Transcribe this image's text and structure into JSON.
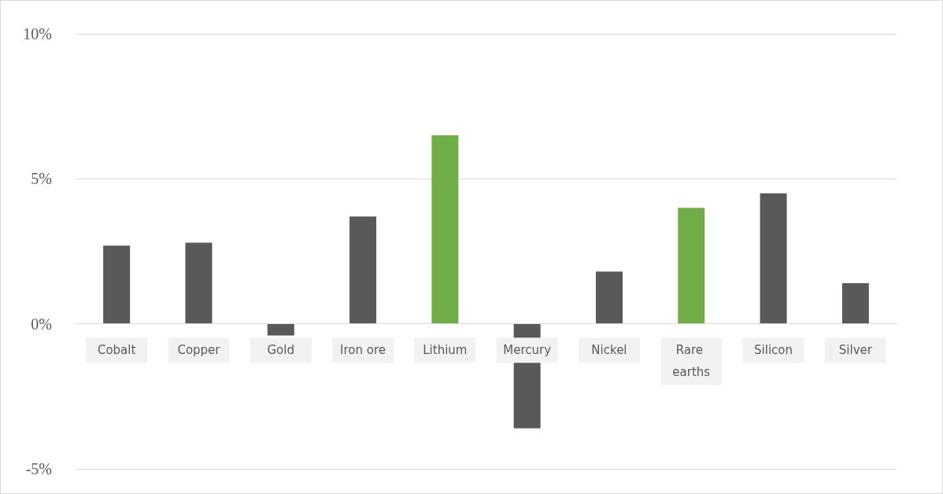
{
  "chart_data": {
    "type": "bar",
    "categories": [
      "Cobalt",
      "Copper",
      "Gold",
      "Iron ore",
      "Lithium",
      "Mercury",
      "Nickel",
      "Rare earths",
      "Silicon",
      "Silver"
    ],
    "values": [
      2.7,
      2.8,
      -0.4,
      3.7,
      6.5,
      -3.6,
      1.8,
      4.0,
      4.5,
      1.4
    ],
    "colors": [
      "#595959",
      "#595959",
      "#595959",
      "#595959",
      "#70ad47",
      "#595959",
      "#595959",
      "#70ad47",
      "#595959",
      "#595959"
    ],
    "ylim": [
      -5,
      10
    ],
    "yticks": [
      {
        "value": -5,
        "label": "-5%"
      },
      {
        "value": 0,
        "label": "0%"
      },
      {
        "value": 5,
        "label": "5%"
      },
      {
        "value": 10,
        "label": "10%"
      }
    ],
    "grid": "y"
  }
}
